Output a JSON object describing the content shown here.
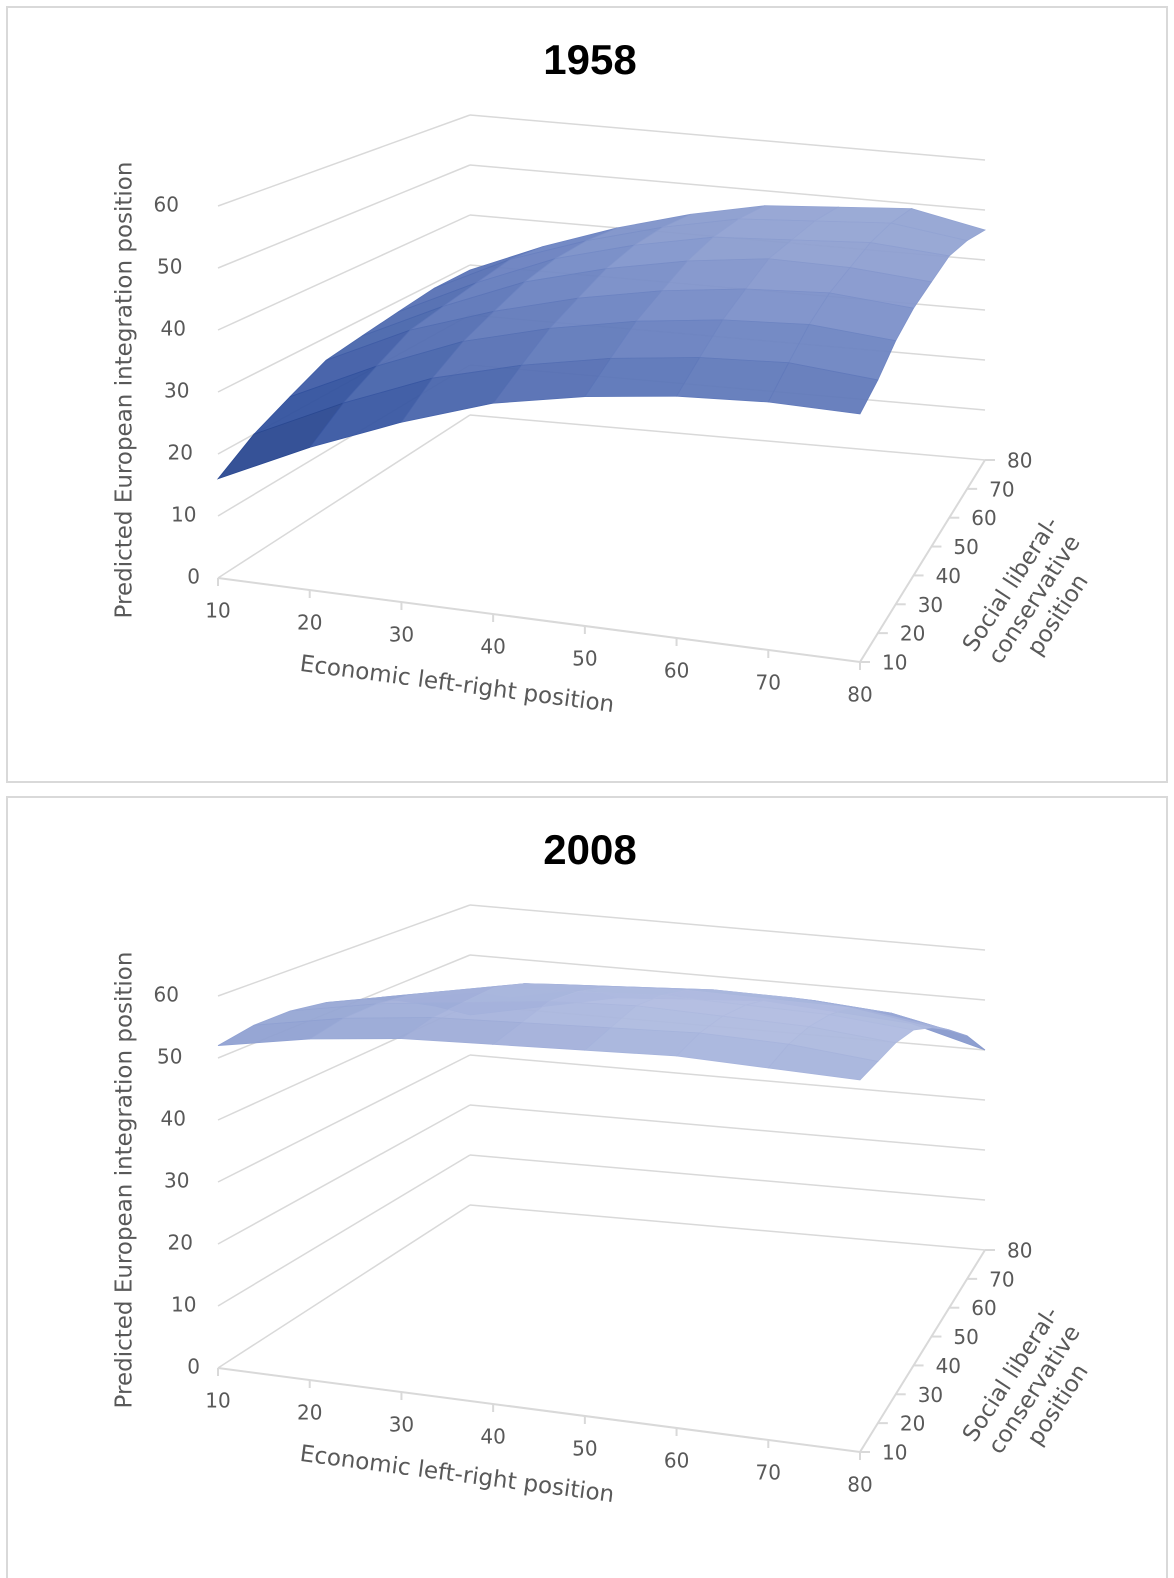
{
  "chart_data": [
    {
      "type": "surface",
      "title": "1958",
      "x_label": "Economic left-right position",
      "y_label": [
        "Social liberal-",
        "conservative",
        "position"
      ],
      "z_label": "Predicted European integration position",
      "x": [
        10,
        20,
        30,
        40,
        50,
        60,
        70,
        80
      ],
      "y": [
        10,
        20,
        30,
        40,
        50,
        60,
        70,
        80
      ],
      "z": [
        [
          16,
          23,
          29,
          34,
          37,
          39,
          40,
          40
        ],
        [
          20,
          27,
          33,
          37,
          40,
          42,
          43,
          42
        ],
        [
          23,
          30,
          36,
          40,
          43,
          45,
          46,
          45
        ],
        [
          26,
          33,
          38,
          42,
          45,
          47,
          48,
          47
        ],
        [
          27,
          34,
          40,
          44,
          47,
          49,
          49,
          48
        ],
        [
          28,
          35,
          41,
          45,
          48,
          49,
          50,
          49
        ],
        [
          29,
          36,
          41,
          45,
          48,
          49,
          50,
          48
        ],
        [
          29,
          35,
          40,
          44,
          47,
          48,
          49,
          46
        ]
      ],
      "xlim": [
        10,
        80
      ],
      "ylim": [
        10,
        80
      ],
      "zlim": [
        0,
        60
      ],
      "xticks": [
        10,
        20,
        30,
        40,
        50,
        60,
        70,
        80
      ],
      "yticks": [
        10,
        20,
        30,
        40,
        50,
        60,
        70,
        80
      ],
      "zticks": [
        0,
        10,
        20,
        30,
        40,
        50,
        60
      ],
      "colormap": [
        "#15295c",
        "#2f4f9c",
        "#6d84c2",
        "#b9c3e4"
      ]
    },
    {
      "type": "surface",
      "title": "2008",
      "x_label": "Economic left-right position",
      "y_label": [
        "Social liberal-",
        "conservative",
        "position"
      ],
      "z_label": "Predicted European integration position",
      "x": [
        10,
        20,
        30,
        40,
        50,
        60,
        70,
        80
      ],
      "y": [
        10,
        20,
        30,
        40,
        50,
        60,
        70,
        80
      ],
      "z": [
        [
          52,
          55,
          57,
          58,
          59,
          60,
          60,
          60
        ],
        [
          53,
          56,
          58,
          59,
          60,
          61,
          61,
          60
        ],
        [
          53,
          56,
          58,
          60,
          61,
          61,
          61,
          60
        ],
        [
          52,
          55,
          58,
          59,
          60,
          60,
          60,
          59
        ],
        [
          50,
          53,
          56,
          57,
          58,
          58,
          58,
          56
        ],
        [
          47,
          50,
          53,
          54,
          55,
          55,
          54,
          52
        ],
        [
          43,
          46,
          49,
          50,
          51,
          51,
          50,
          47
        ],
        [
          38,
          41,
          44,
          45,
          46,
          45,
          44,
          40
        ]
      ],
      "xlim": [
        10,
        80
      ],
      "ylim": [
        10,
        80
      ],
      "zlim": [
        0,
        60
      ],
      "xticks": [
        10,
        20,
        30,
        40,
        50,
        60,
        70,
        80
      ],
      "yticks": [
        10,
        20,
        30,
        40,
        50,
        60,
        70,
        80
      ],
      "zticks": [
        0,
        10,
        20,
        30,
        40,
        50,
        60
      ],
      "colormap": [
        "#15295c",
        "#2f4f9c",
        "#6d84c2",
        "#b9c3e4"
      ]
    }
  ]
}
